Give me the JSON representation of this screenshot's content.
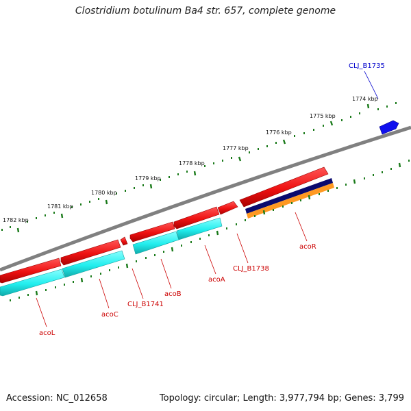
{
  "title": "Clostridium botulinum Ba4 str. 657, complete genome",
  "footer": {
    "accession": "Accession: NC_012658",
    "summary": "Topology: circular; Length: 3,977,794 bp; Genes: 3,799"
  },
  "colors": {
    "backbone": "#808080",
    "ticks": "#1a7a1a",
    "gene_label": "#cc0000",
    "highlight_label": "#0000cc",
    "cds_red": "#ee1111",
    "cds_cyan": "#22eeee",
    "cds_navy": "#0a0a6e",
    "cds_orange": "#ff9922",
    "cds_blue": "#1010ee"
  },
  "scale_labels": [
    "1774 kbp",
    "1775 kbp",
    "1776 kbp",
    "1777 kbp",
    "1778 kbp",
    "1779 kbp",
    "1780 kbp",
    "1781 kbp",
    "1782 kbp"
  ],
  "gene_labels": [
    {
      "text": "CLJ_B1735",
      "color": "highlight"
    },
    {
      "text": "acoR",
      "color": "gene"
    },
    {
      "text": "CLJ_B1738",
      "color": "gene"
    },
    {
      "text": "acoA",
      "color": "gene"
    },
    {
      "text": "acoB",
      "color": "gene"
    },
    {
      "text": "CLJ_B1741",
      "color": "gene"
    },
    {
      "text": "acoC",
      "color": "gene"
    },
    {
      "text": "acoL",
      "color": "gene"
    }
  ]
}
